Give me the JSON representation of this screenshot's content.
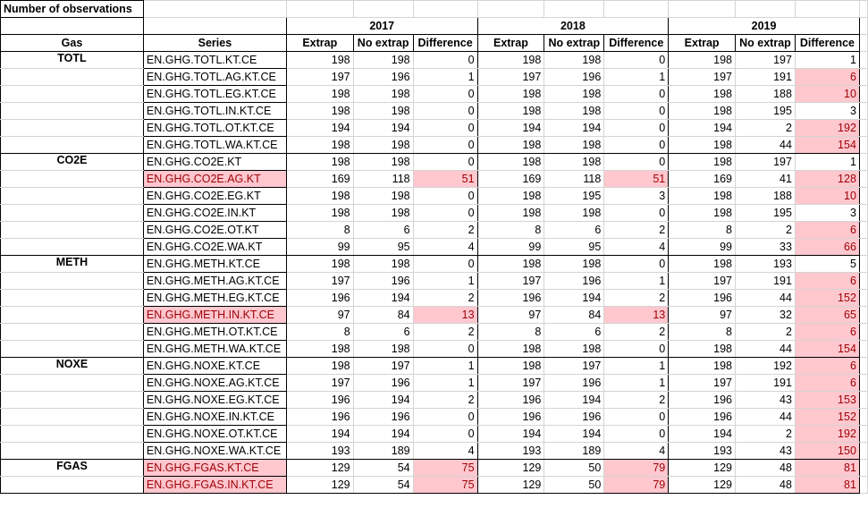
{
  "title": "Number of observations",
  "headers": {
    "gas": "Gas",
    "series": "Series",
    "years": [
      "2017",
      "2018",
      "2019"
    ],
    "sub": [
      "Extrap",
      "No extrap",
      "Difference"
    ]
  },
  "groups": [
    {
      "gas": "TOTL",
      "rows": [
        {
          "series": "EN.GHG.TOTL.KT.CE",
          "vals": [
            198,
            198,
            0,
            198,
            198,
            0,
            198,
            197,
            1
          ],
          "hl": []
        },
        {
          "series": "EN.GHG.TOTL.AG.KT.CE",
          "vals": [
            197,
            196,
            1,
            197,
            196,
            1,
            197,
            191,
            6
          ],
          "hl": [
            8
          ]
        },
        {
          "series": "EN.GHG.TOTL.EG.KT.CE",
          "vals": [
            198,
            198,
            0,
            198,
            198,
            0,
            198,
            188,
            10
          ],
          "hl": [
            8
          ]
        },
        {
          "series": "EN.GHG.TOTL.IN.KT.CE",
          "vals": [
            198,
            198,
            0,
            198,
            198,
            0,
            198,
            195,
            3
          ],
          "hl": []
        },
        {
          "series": "EN.GHG.TOTL.OT.KT.CE",
          "vals": [
            194,
            194,
            0,
            194,
            194,
            0,
            194,
            2,
            192
          ],
          "hl": [
            8
          ]
        },
        {
          "series": "EN.GHG.TOTL.WA.KT.CE",
          "vals": [
            198,
            198,
            0,
            198,
            198,
            0,
            198,
            44,
            154
          ],
          "hl": [
            8
          ]
        }
      ]
    },
    {
      "gas": "CO2E",
      "rows": [
        {
          "series": "EN.GHG.CO2E.KT",
          "vals": [
            198,
            198,
            0,
            198,
            198,
            0,
            198,
            197,
            1
          ],
          "hl": []
        },
        {
          "series": "EN.GHG.CO2E.AG.KT",
          "vals": [
            169,
            118,
            51,
            169,
            118,
            51,
            169,
            41,
            128
          ],
          "hl": [
            "s",
            2,
            5,
            8
          ]
        },
        {
          "series": "EN.GHG.CO2E.EG.KT",
          "vals": [
            198,
            198,
            0,
            198,
            195,
            3,
            198,
            188,
            10
          ],
          "hl": [
            8
          ]
        },
        {
          "series": "EN.GHG.CO2E.IN.KT",
          "vals": [
            198,
            198,
            0,
            198,
            198,
            0,
            198,
            195,
            3
          ],
          "hl": []
        },
        {
          "series": "EN.GHG.CO2E.OT.KT",
          "vals": [
            8,
            6,
            2,
            8,
            6,
            2,
            8,
            2,
            6
          ],
          "hl": [
            8
          ]
        },
        {
          "series": "EN.GHG.CO2E.WA.KT",
          "vals": [
            99,
            95,
            4,
            99,
            95,
            4,
            99,
            33,
            66
          ],
          "hl": [
            8
          ]
        }
      ]
    },
    {
      "gas": "METH",
      "rows": [
        {
          "series": "EN.GHG.METH.KT.CE",
          "vals": [
            198,
            198,
            0,
            198,
            198,
            0,
            198,
            193,
            5
          ],
          "hl": []
        },
        {
          "series": "EN.GHG.METH.AG.KT.CE",
          "vals": [
            197,
            196,
            1,
            197,
            196,
            1,
            197,
            191,
            6
          ],
          "hl": [
            8
          ]
        },
        {
          "series": "EN.GHG.METH.EG.KT.CE",
          "vals": [
            196,
            194,
            2,
            196,
            194,
            2,
            196,
            44,
            152
          ],
          "hl": [
            8
          ]
        },
        {
          "series": "EN.GHG.METH.IN.KT.CE",
          "vals": [
            97,
            84,
            13,
            97,
            84,
            13,
            97,
            32,
            65
          ],
          "hl": [
            "s",
            2,
            5,
            8
          ]
        },
        {
          "series": "EN.GHG.METH.OT.KT.CE",
          "vals": [
            8,
            6,
            2,
            8,
            6,
            2,
            8,
            2,
            6
          ],
          "hl": [
            8
          ]
        },
        {
          "series": "EN.GHG.METH.WA.KT.CE",
          "vals": [
            198,
            198,
            0,
            198,
            198,
            0,
            198,
            44,
            154
          ],
          "hl": [
            8
          ]
        }
      ]
    },
    {
      "gas": "NOXE",
      "rows": [
        {
          "series": "EN.GHG.NOXE.KT.CE",
          "vals": [
            198,
            197,
            1,
            198,
            197,
            1,
            198,
            192,
            6
          ],
          "hl": [
            8
          ]
        },
        {
          "series": "EN.GHG.NOXE.AG.KT.CE",
          "vals": [
            197,
            196,
            1,
            197,
            196,
            1,
            197,
            191,
            6
          ],
          "hl": [
            8
          ]
        },
        {
          "series": "EN.GHG.NOXE.EG.KT.CE",
          "vals": [
            196,
            194,
            2,
            196,
            194,
            2,
            196,
            43,
            153
          ],
          "hl": [
            8
          ]
        },
        {
          "series": "EN.GHG.NOXE.IN.KT.CE",
          "vals": [
            196,
            196,
            0,
            196,
            196,
            0,
            196,
            44,
            152
          ],
          "hl": [
            8
          ]
        },
        {
          "series": "EN.GHG.NOXE.OT.KT.CE",
          "vals": [
            194,
            194,
            0,
            194,
            194,
            0,
            194,
            2,
            192
          ],
          "hl": [
            8
          ]
        },
        {
          "series": "EN.GHG.NOXE.WA.KT.CE",
          "vals": [
            193,
            189,
            4,
            193,
            189,
            4,
            193,
            43,
            150
          ],
          "hl": [
            8
          ]
        }
      ]
    },
    {
      "gas": "FGAS",
      "rows": [
        {
          "series": "EN.GHG.FGAS.KT.CE",
          "vals": [
            129,
            54,
            75,
            129,
            50,
            79,
            129,
            48,
            81
          ],
          "hl": [
            "s",
            2,
            5,
            8
          ]
        },
        {
          "series": "EN.GHG.FGAS.IN.KT.CE",
          "vals": [
            129,
            54,
            75,
            129,
            50,
            79,
            129,
            48,
            81
          ],
          "hl": [
            "s",
            2,
            5,
            8
          ]
        }
      ]
    }
  ]
}
